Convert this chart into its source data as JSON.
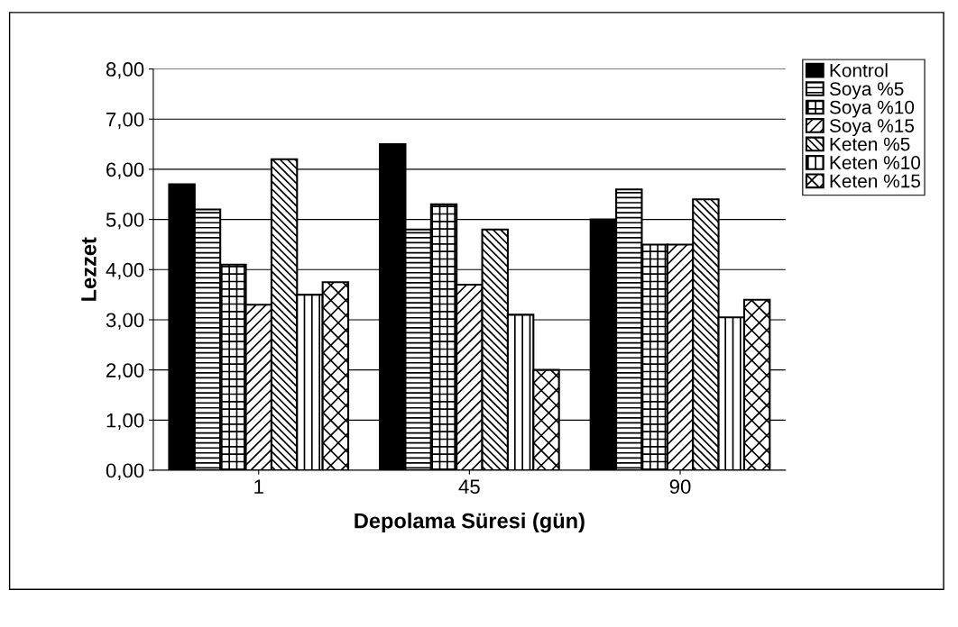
{
  "chart_data": {
    "type": "bar",
    "xlabel": "Depolama Süresi (gün)",
    "ylabel": "Lezzet",
    "categories": [
      "1",
      "45",
      "90"
    ],
    "series": [
      {
        "name": "Kontrol",
        "color": "#000000",
        "values": [
          5.7,
          6.5,
          5.0
        ]
      },
      {
        "name": "Soya %5",
        "color": "#000000",
        "values": [
          5.2,
          4.8,
          5.6
        ]
      },
      {
        "name": "Soya %10",
        "color": "#000000",
        "values": [
          4.1,
          5.3,
          4.5
        ]
      },
      {
        "name": "Soya %15",
        "color": "#000000",
        "values": [
          3.3,
          3.7,
          4.5
        ]
      },
      {
        "name": "Keten %5",
        "color": "#000000",
        "values": [
          6.2,
          4.8,
          5.4
        ]
      },
      {
        "name": "Keten %10",
        "color": "#000000",
        "values": [
          3.5,
          3.1,
          3.05
        ]
      },
      {
        "name": "Keten %15",
        "color": "#000000",
        "values": [
          3.75,
          2.0,
          3.4
        ]
      }
    ],
    "ylim": [
      0,
      8
    ],
    "yticks": [
      {
        "value": 0,
        "label": "0,00"
      },
      {
        "value": 1,
        "label": "1,00"
      },
      {
        "value": 2,
        "label": "2,00"
      },
      {
        "value": 3,
        "label": "3,00"
      },
      {
        "value": 4,
        "label": "4,00"
      },
      {
        "value": 5,
        "label": "5,00"
      },
      {
        "value": 6,
        "label": "6,00"
      },
      {
        "value": 7,
        "label": "7,00"
      },
      {
        "value": 8,
        "label": "8,00"
      }
    ],
    "grid": "y",
    "legend": "top right"
  }
}
